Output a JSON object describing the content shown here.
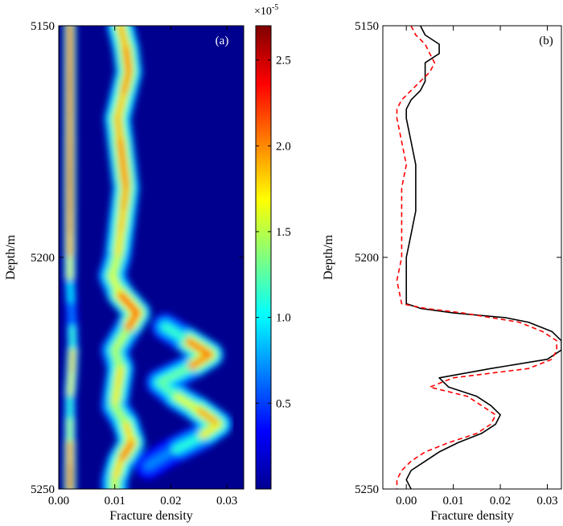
{
  "chart_data": [
    {
      "type": "heatmap",
      "panel_label": "(a)",
      "xlabel": "Fracture density",
      "ylabel": "Depth/m",
      "xlim": [
        0.0,
        0.033
      ],
      "ylim": [
        5150,
        5250
      ],
      "y_reversed": true,
      "xticks": [
        0.0,
        0.01,
        0.02,
        0.03
      ],
      "xtick_labels": [
        "0.00",
        "0.01",
        "0.02",
        "0.03"
      ],
      "yticks": [
        5150,
        5200,
        5250
      ],
      "ytick_labels": [
        "5150",
        "5200",
        "5250"
      ],
      "colorbar": {
        "multiplier_label": "×10",
        "multiplier_exponent": "-5",
        "range": [
          0.0,
          2.7
        ],
        "ticks": [
          0.5,
          1.0,
          1.5,
          2.0,
          2.5
        ],
        "tick_labels": [
          "0.5",
          "1.0",
          "1.5",
          "2.0",
          "2.5"
        ]
      },
      "ridges": [
        {
          "depth": [
            5150,
            5155,
            5160,
            5165,
            5170,
            5175,
            5180,
            5185,
            5190,
            5195,
            5200,
            5205,
            5210,
            5215,
            5220,
            5225,
            5230,
            5235,
            5240,
            5245,
            5250
          ],
          "x": [
            0.002,
            0.002,
            0.002,
            0.002,
            0.002,
            0.002,
            0.002,
            0.002,
            0.002,
            0.002,
            0.002,
            0.002,
            0.0022,
            0.0024,
            0.0025,
            0.0023,
            0.002,
            0.002,
            0.002,
            0.002,
            0.002
          ],
          "intensity": [
            2.6,
            2.5,
            2.6,
            2.6,
            2.5,
            2.5,
            2.6,
            2.6,
            2.5,
            2.4,
            2.2,
            1.4,
            0.5,
            0.7,
            1.6,
            2.3,
            1.3,
            1.0,
            2.1,
            2.6,
            2.5
          ]
        },
        {
          "depth": [
            5150,
            5155,
            5160,
            5165,
            5170,
            5175,
            5180,
            5185,
            5190,
            5195,
            5200,
            5204,
            5208,
            5212,
            5216,
            5220,
            5224,
            5228,
            5232,
            5236,
            5240,
            5244,
            5248,
            5250
          ],
          "x": [
            0.011,
            0.012,
            0.0125,
            0.0115,
            0.0105,
            0.011,
            0.0115,
            0.012,
            0.0115,
            0.011,
            0.0105,
            0.0095,
            0.011,
            0.014,
            0.012,
            0.01,
            0.011,
            0.0105,
            0.01,
            0.012,
            0.013,
            0.011,
            0.01,
            0.01
          ],
          "intensity": [
            1.8,
            2.0,
            2.1,
            1.9,
            1.8,
            2.0,
            2.1,
            2.0,
            1.9,
            1.8,
            1.7,
            1.4,
            1.8,
            2.6,
            1.7,
            1.3,
            1.6,
            1.9,
            1.5,
            1.4,
            2.2,
            2.0,
            1.6,
            1.5
          ]
        },
        {
          "depth": [
            5215,
            5218,
            5221,
            5224,
            5227,
            5230,
            5233,
            5236,
            5239,
            5242,
            5245
          ],
          "x": [
            0.019,
            0.023,
            0.027,
            0.023,
            0.018,
            0.021,
            0.025,
            0.0285,
            0.025,
            0.02,
            0.016
          ],
          "intensity": [
            0.6,
            1.6,
            2.6,
            1.5,
            1.0,
            1.4,
            1.8,
            2.1,
            1.3,
            0.8,
            0.4
          ]
        }
      ]
    },
    {
      "type": "line",
      "panel_label": "(b)",
      "xlabel": "Fracture density",
      "ylabel": "Depth/m",
      "xlim": [
        -0.005,
        0.033
      ],
      "ylim": [
        5150,
        5250
      ],
      "y_reversed": true,
      "xticks": [
        0.0,
        0.01,
        0.02,
        0.03
      ],
      "xtick_labels": [
        "0.00",
        "0.01",
        "0.02",
        "0.03"
      ],
      "yticks": [
        5150,
        5200,
        5250
      ],
      "ytick_labels": [
        "5150",
        "5200",
        "5250"
      ],
      "series": [
        {
          "style": "solid",
          "color": "#000000",
          "depth": [
            5150,
            5152,
            5154,
            5156,
            5158,
            5160,
            5162,
            5164,
            5166,
            5168,
            5170,
            5175,
            5180,
            5185,
            5190,
            5195,
            5200,
            5205,
            5210,
            5211,
            5212,
            5213,
            5214,
            5216,
            5218,
            5220,
            5222,
            5224,
            5226,
            5228,
            5230,
            5232,
            5234,
            5236,
            5238,
            5240,
            5242,
            5244,
            5246,
            5248,
            5250
          ],
          "x": [
            0.003,
            0.004,
            0.007,
            0.007,
            0.004,
            0.004,
            0.004,
            0.003,
            0.001,
            0.0,
            0.0,
            0.001,
            0.002,
            0.002,
            0.002,
            0.001,
            0.0,
            0.0,
            0.0,
            0.003,
            0.01,
            0.021,
            0.026,
            0.031,
            0.033,
            0.033,
            0.03,
            0.018,
            0.007,
            0.009,
            0.015,
            0.018,
            0.02,
            0.019,
            0.016,
            0.011,
            0.007,
            0.004,
            0.001,
            0.0,
            0.001
          ]
        },
        {
          "style": "dashed",
          "color": "#ff0000",
          "depth": [
            5150,
            5152,
            5154,
            5156,
            5158,
            5160,
            5162,
            5164,
            5166,
            5168,
            5170,
            5175,
            5180,
            5185,
            5190,
            5195,
            5200,
            5205,
            5210,
            5211,
            5212,
            5213,
            5214,
            5216,
            5218,
            5220,
            5222,
            5224,
            5226,
            5228,
            5230,
            5232,
            5234,
            5236,
            5238,
            5240,
            5242,
            5244,
            5246,
            5248,
            5250
          ],
          "x": [
            0.001,
            0.002,
            0.004,
            0.005,
            0.006,
            0.005,
            0.003,
            0.001,
            -0.001,
            -0.002,
            -0.002,
            -0.001,
            0.0,
            -0.001,
            -0.001,
            -0.001,
            -0.001,
            -0.002,
            -0.001,
            0.004,
            0.012,
            0.018,
            0.024,
            0.029,
            0.032,
            0.032,
            0.031,
            0.026,
            0.01,
            0.005,
            0.013,
            0.016,
            0.019,
            0.018,
            0.015,
            0.009,
            0.004,
            0.001,
            -0.001,
            -0.002,
            -0.002
          ]
        }
      ]
    }
  ]
}
